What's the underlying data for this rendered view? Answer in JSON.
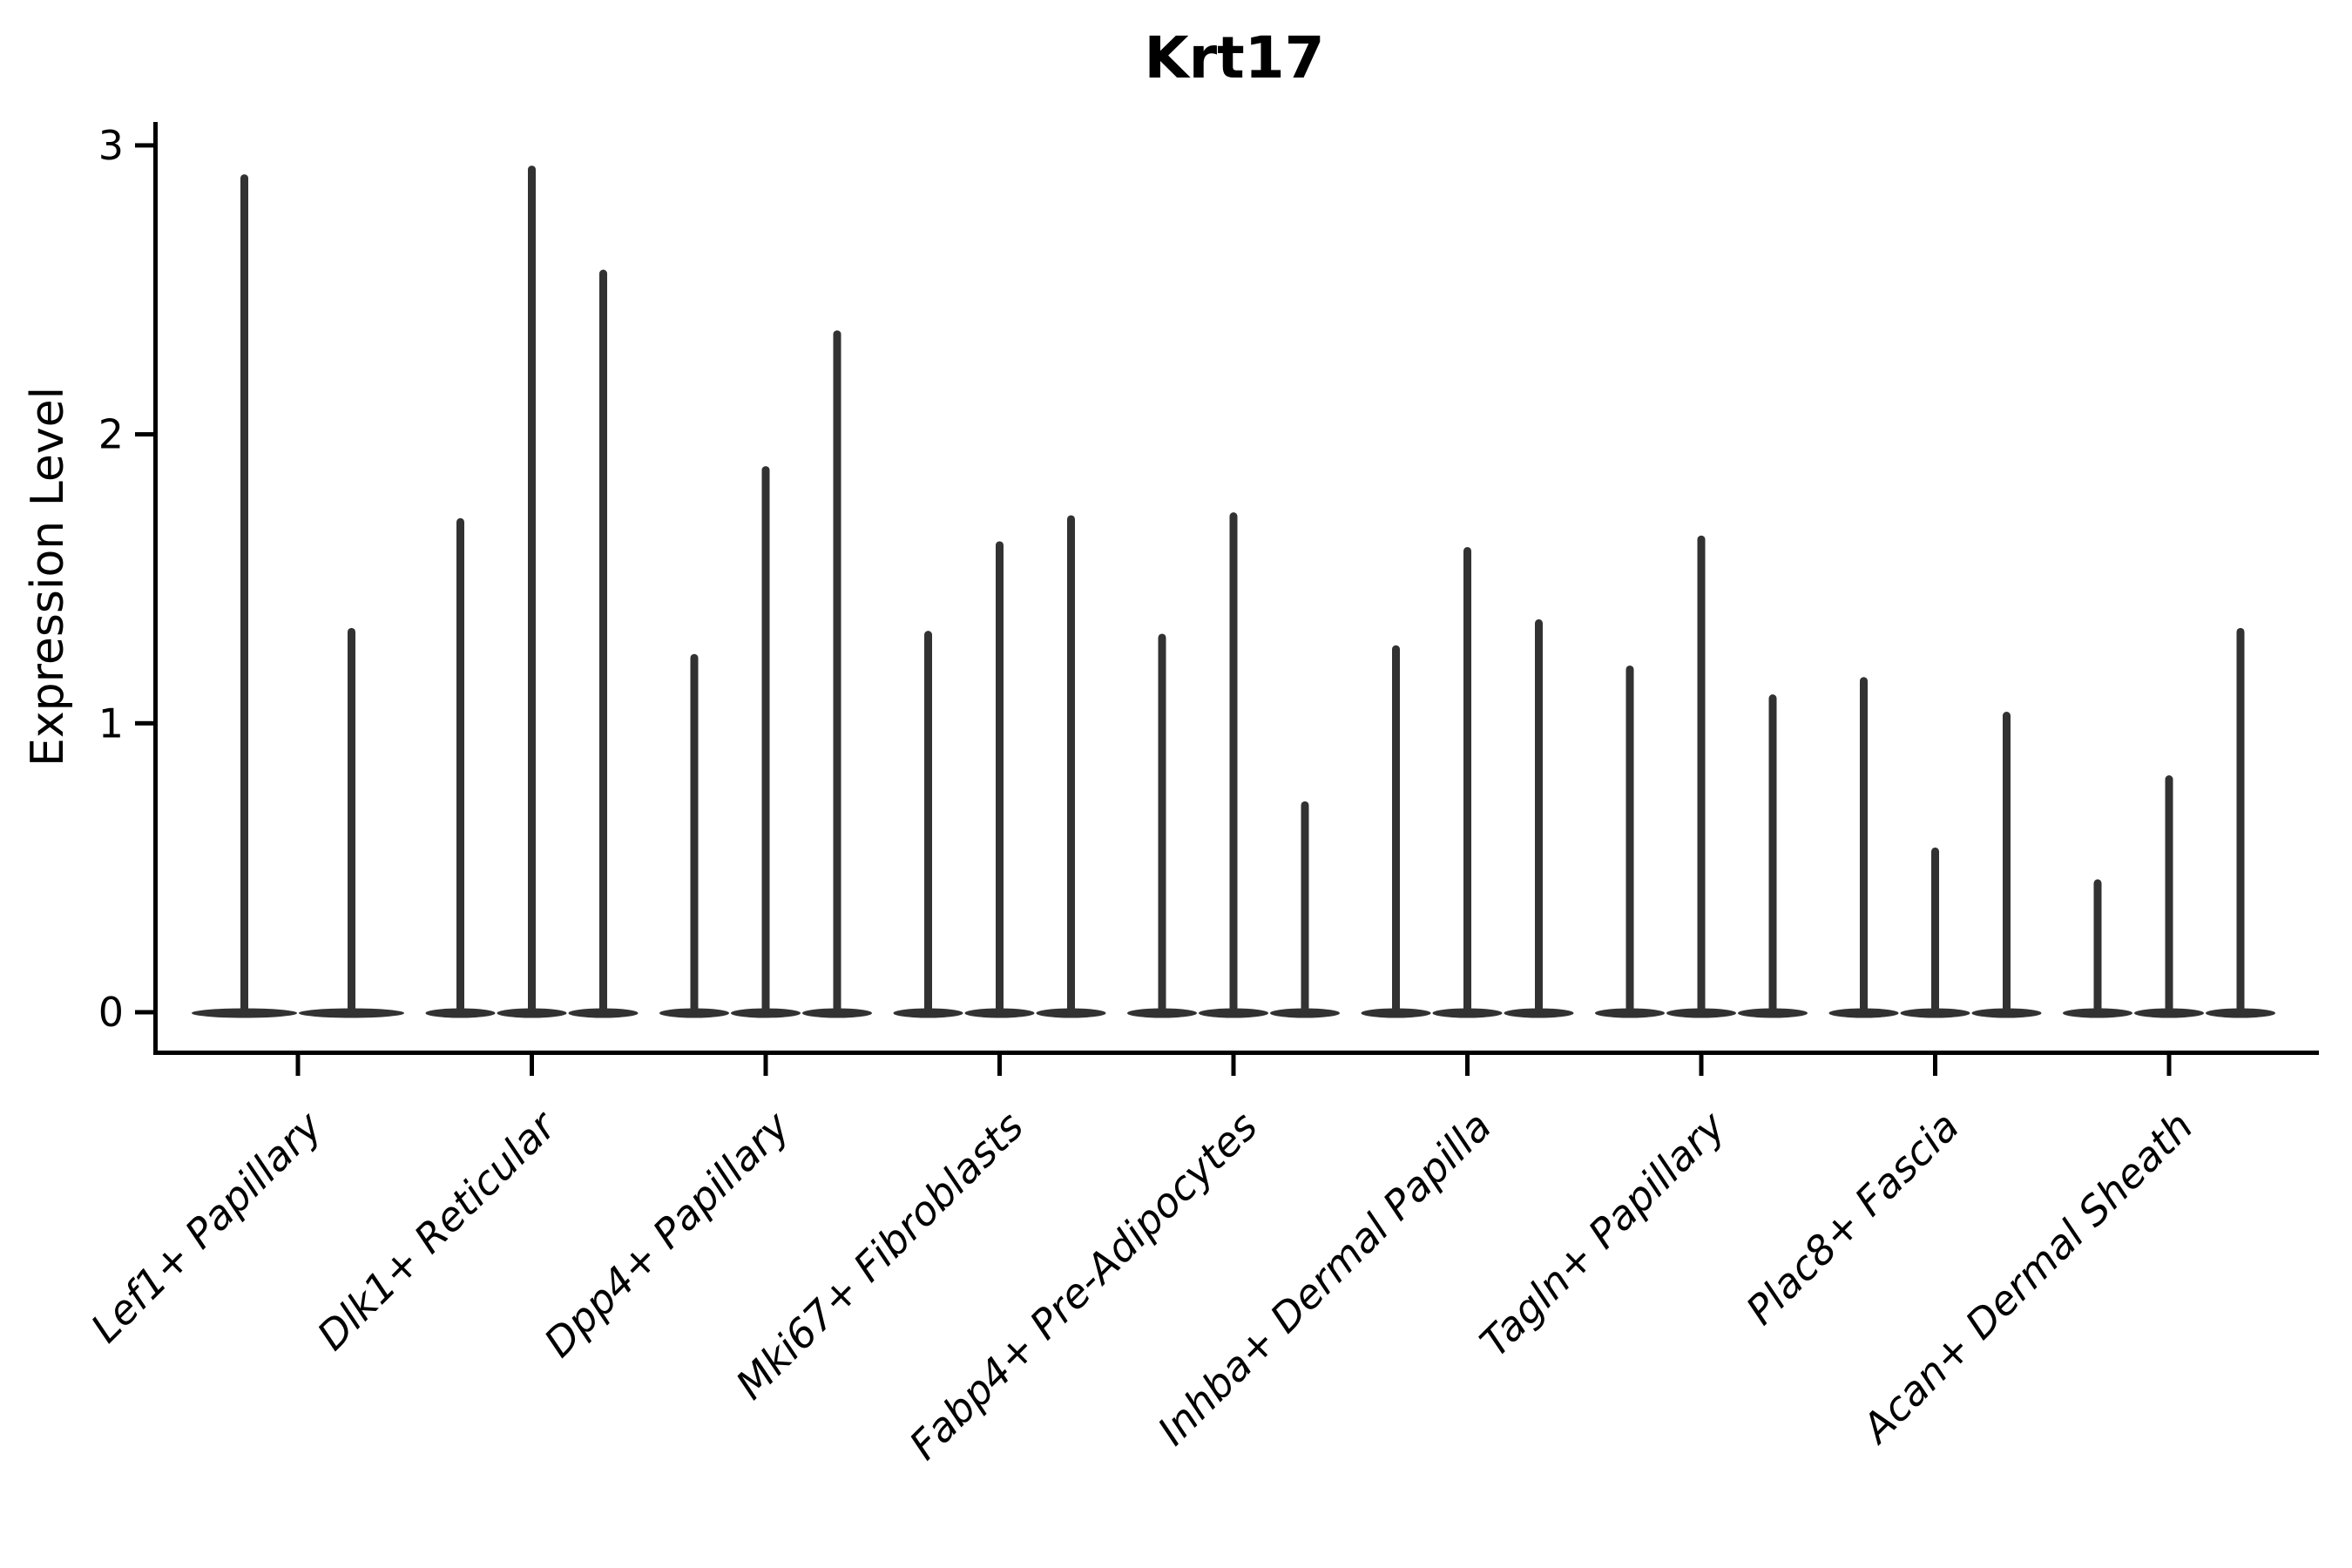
{
  "title": "Krt17",
  "axes": {
    "ylabel": "Expression Level",
    "yticks": [
      0,
      1,
      2,
      3
    ]
  },
  "chart_data": {
    "type": "violin",
    "title": "Krt17",
    "xlabel": "",
    "ylabel": "Expression Level",
    "ylim": [
      0,
      3.05
    ],
    "yticks": [
      0,
      1,
      2,
      3
    ],
    "grid": false,
    "legend": "none",
    "description": "Thin violin plot of Krt17 expression per fibroblast cluster; each category holds 2-3 narrow violins whose mass sits at 0 with a single spike up to the listed maximum expression value.",
    "categories": [
      "Lef1+ Papillary",
      "Dlk1+ Reticular",
      "Dpp4+ Papillary",
      "Mki67+ Fibroblasts",
      "Fabp4+ Pre-Adipocytes",
      "Inhba+ Dermal Papilla",
      "Tagln+ Papillary",
      "Plac8+ Fascia",
      "Acan+ Dermal Sheath"
    ],
    "groups": [
      {
        "category": "Lef1+ Papillary",
        "violin_max": [
          2.9,
          1.33
        ]
      },
      {
        "category": "Dlk1+ Reticular",
        "violin_max": [
          1.71,
          2.93,
          2.57
        ]
      },
      {
        "category": "Dpp4+ Papillary",
        "violin_max": [
          1.24,
          1.89,
          2.36
        ]
      },
      {
        "category": "Mki67+ Fibroblasts",
        "violin_max": [
          1.32,
          1.63,
          1.72
        ]
      },
      {
        "category": "Fabp4+ Pre-Adipocytes",
        "violin_max": [
          1.31,
          1.73,
          0.73
        ]
      },
      {
        "category": "Inhba+ Dermal Papilla",
        "violin_max": [
          1.27,
          1.61,
          1.36
        ]
      },
      {
        "category": "Tagln+ Papillary",
        "violin_max": [
          1.2,
          1.65,
          1.1
        ]
      },
      {
        "category": "Plac8+ Fascia",
        "violin_max": [
          1.16,
          0.57,
          1.04
        ]
      },
      {
        "category": "Acan+ Dermal Sheath",
        "violin_max": [
          0.46,
          0.82,
          1.33
        ]
      }
    ],
    "baseline_value": 0,
    "colors": {
      "violin": "#323232",
      "axis": "#000000",
      "text": "#000000",
      "background": "#ffffff"
    }
  }
}
